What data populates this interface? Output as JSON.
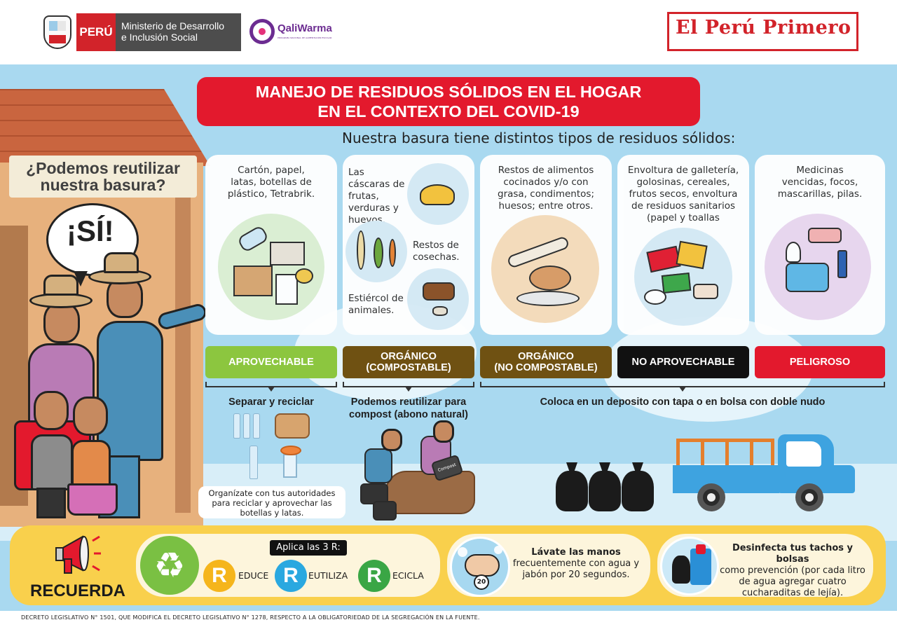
{
  "header": {
    "peru_label": "PERÚ",
    "ministry_line1": "Ministerio de Desarrollo",
    "ministry_line2": "e Inclusión Social",
    "qaliwarma_name": "QaliWarma",
    "qaliwarma_sub": "PROGRAMA NACIONAL DE ALIMENTACIÓN ESCOLAR",
    "slogan": "El Perú Primero"
  },
  "title": {
    "line1": "MANEJO DE RESIDUOS SÓLIDOS EN EL HOGAR",
    "line2": "EN EL CONTEXTO DEL COVID-19"
  },
  "subtitle": "Nuestra basura tiene distintos tipos de residuos sólidos:",
  "question": {
    "line1": "¿Podemos reutilizar",
    "line2": "nuestra basura?"
  },
  "answer": "¡SÍ!",
  "cards": [
    {
      "line1": "Cartón, papel,",
      "line2": "latas, botellas de",
      "line3": "plástico, Tetrabrik."
    },
    {
      "frutas": "Las cáscaras de frutas, verduras y huevos.",
      "cosechas": "Restos de cosechas.",
      "estiercol": "Estiércol de animales."
    },
    {
      "line1": "Restos de alimentos",
      "line2": "cocinados y/o con",
      "line3": "grasa, condimentos;",
      "line4": "huesos; entre otros."
    },
    {
      "line1": "Envoltura de galletería,",
      "line2": "golosinas, cereales,",
      "line3": "frutos secos, envoltura",
      "line4": "de residuos sanitarios",
      "line5": "(papel y toallas"
    },
    {
      "line1": "Medicinas",
      "line2": "vencidas, focos,",
      "line3": "mascarillas, pilas."
    }
  ],
  "categories": [
    {
      "label": "APROVECHABLE",
      "color": "#8cc63f"
    },
    {
      "line1": "ORGÁNICO",
      "line2": "(COMPOSTABLE)",
      "color": "#6f5112"
    },
    {
      "line1": "ORGÁNICO",
      "line2": "(NO COMPOSTABLE)",
      "color": "#6f5112"
    },
    {
      "label": "NO APROVECHABLE",
      "color": "#111111"
    },
    {
      "label": "PELIGROSO",
      "color": "#e3192d"
    }
  ],
  "instructions": {
    "separar": "Separar y reciclar",
    "compost_line1": "Podemos reutilizar para",
    "compost_line2": "compost (abono natural)",
    "coloca": "Coloca en un deposito con tapa o en bolsa con doble nudo",
    "organiza_line1": "Organízate con tus autoridades",
    "organiza_line2": "para reciclar y aprovechar las",
    "organiza_line3": "botellas y latas.",
    "sack_label": "Compost"
  },
  "remember": {
    "title": "RECUERDA",
    "three_r": "Aplica las 3 R:",
    "r_letter": "R",
    "reduce": "EDUCE",
    "reutiliza": "EUTILIZA",
    "recicla": "ECICLA",
    "wash_bold": "Lávate las manos",
    "wash_rest": "frecuentemente con agua y jabón por 20 segundos.",
    "timer": "20",
    "bin_bold": "Desinfecta tus tachos y bolsas",
    "bin_rest": "como prevención (por cada litro de agua agregar cuatro cucharaditas de lejía)."
  },
  "footer": "DECRETO LEGISLATIVO N° 1501, QUE MODIFICA EL DECRETO LEGISLATIVO N° 1278, RESPECTO A LA OBLIGATORIEDAD DE LA SEGREGACIÓN EN LA FUENTE.",
  "colors": {
    "accent_red": "#e3192d",
    "sky": "#a9d9f0",
    "green": "#8cc63f",
    "brown": "#6f5112",
    "yellow": "#f9d04c",
    "purple": "#6c2c91"
  },
  "icons": [
    "peru-shield-icon",
    "qaliwarma-logo-icon",
    "megaphone-icon",
    "recycle-icon",
    "hand-wash-icon",
    "bin-icon",
    "truck-icon",
    "trash-bag-icon"
  ]
}
